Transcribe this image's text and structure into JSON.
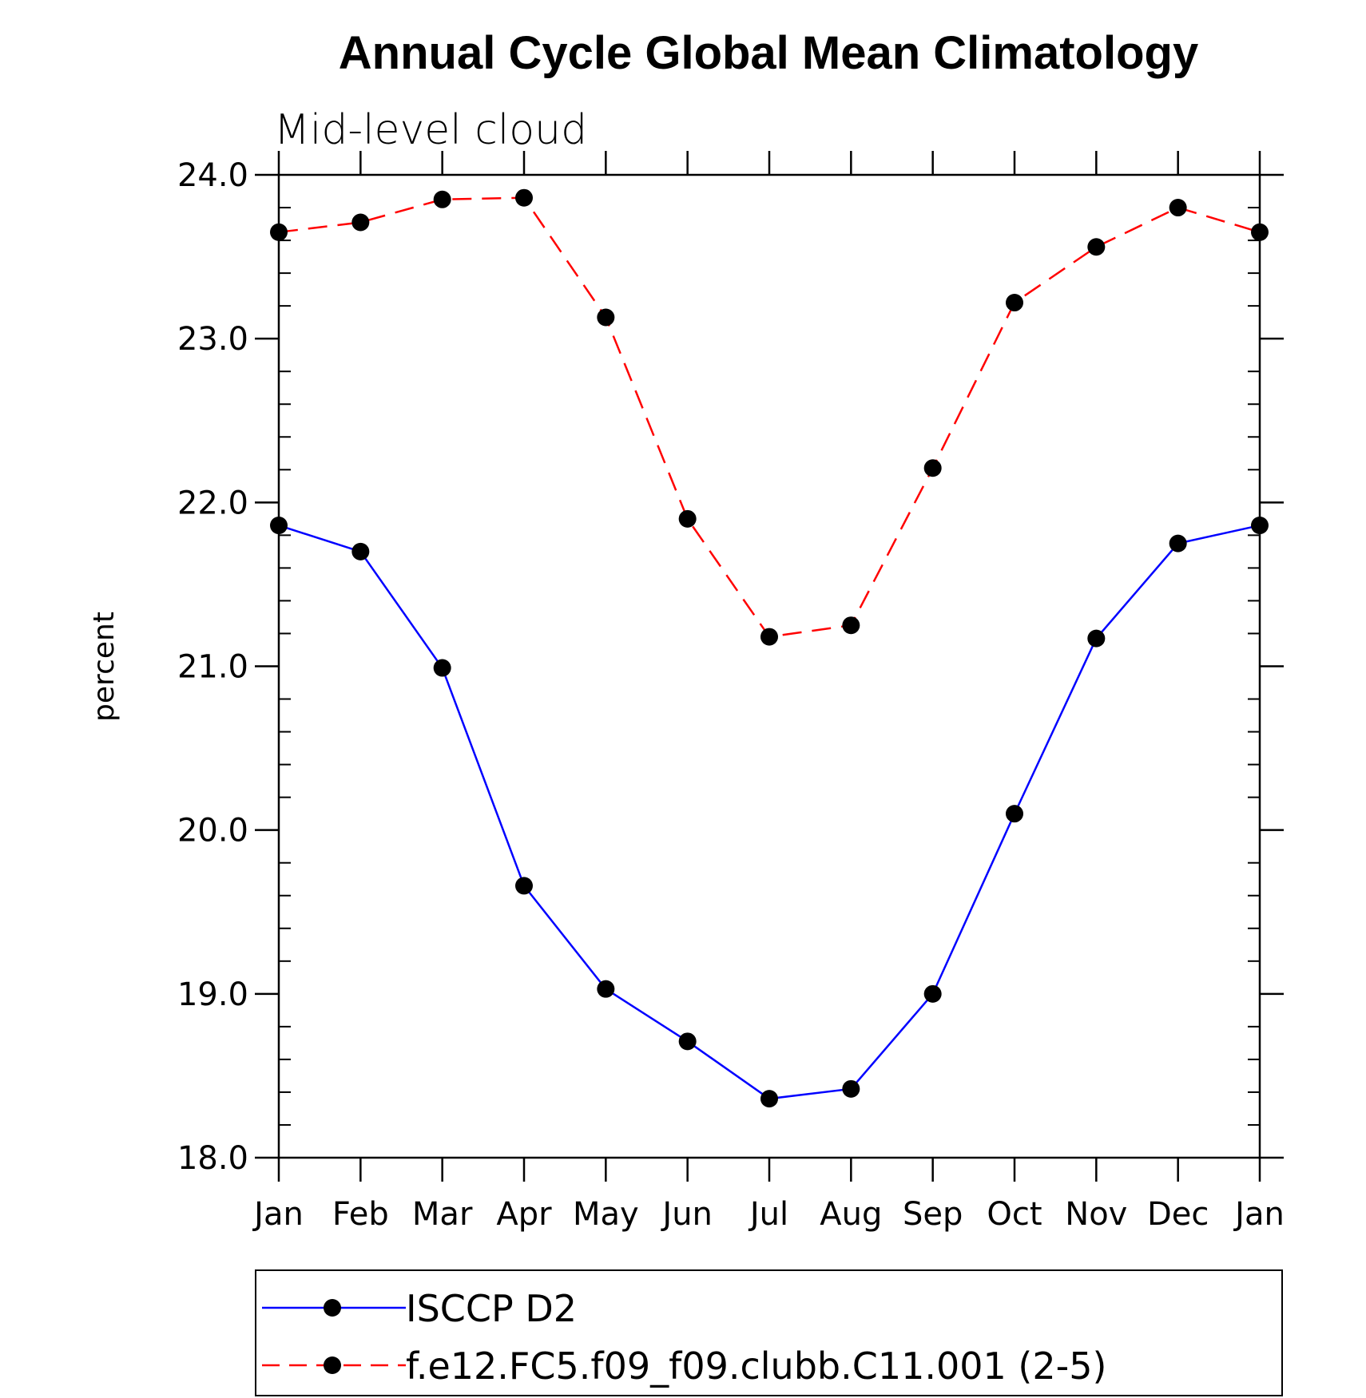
{
  "chart_data": {
    "type": "line",
    "title": "Annual Cycle Global Mean Climatology",
    "subtitle": "Mid-level cloud",
    "ylabel": "percent",
    "xlabel": "",
    "categories": [
      "Jan",
      "Feb",
      "Mar",
      "Apr",
      "May",
      "Jun",
      "Jul",
      "Aug",
      "Sep",
      "Oct",
      "Nov",
      "Dec",
      "Jan"
    ],
    "ylim": [
      18.0,
      24.0
    ],
    "yticks": [
      "18.0",
      "19.0",
      "20.0",
      "21.0",
      "22.0",
      "23.0",
      "24.0"
    ],
    "grid": false,
    "legend_position": "bottom",
    "series": [
      {
        "name": "ISCCP D2",
        "color": "#0000ff",
        "dash": "solid",
        "marker": "filled-circle",
        "values": [
          21.86,
          21.7,
          20.99,
          19.66,
          19.03,
          18.71,
          18.36,
          18.42,
          19.0,
          20.1,
          21.17,
          21.75,
          21.86
        ]
      },
      {
        "name": "f.e12.FC5.f09_f09.clubb.C11.001 (2-5)",
        "color": "#ff0000",
        "dash": "dashed",
        "marker": "filled-circle",
        "values": [
          23.65,
          23.71,
          23.85,
          23.86,
          23.13,
          21.9,
          21.18,
          21.25,
          22.21,
          23.22,
          23.56,
          23.8,
          23.65
        ]
      }
    ]
  }
}
